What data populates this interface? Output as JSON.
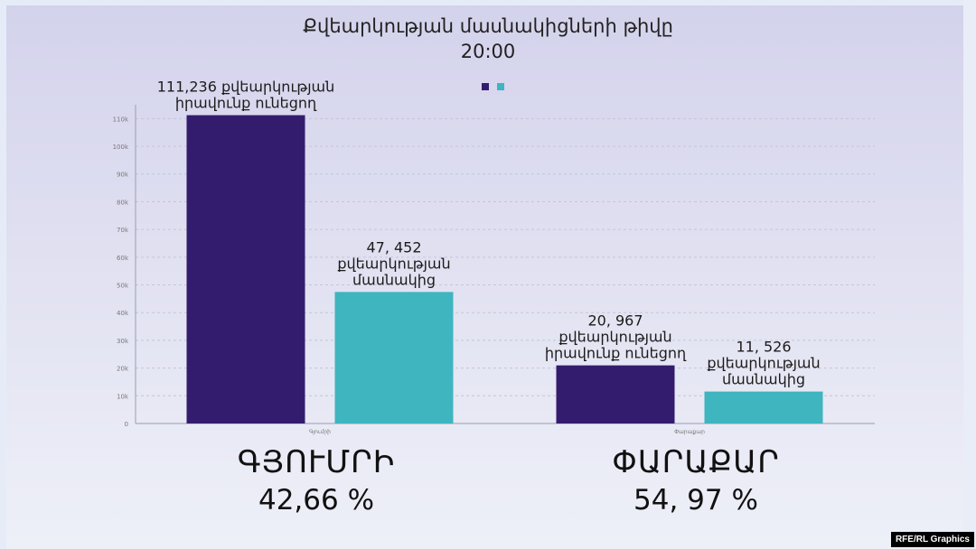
{
  "chart_data": {
    "type": "bar",
    "title": "Քվեարկության մասնակիցների թիվը",
    "subtitle": "20:00",
    "categories": [
      "Գյումրի",
      "Փարաքար"
    ],
    "series": [
      {
        "values": [
          111236,
          20967
        ],
        "color": "#331c6e"
      },
      {
        "values": [
          47452,
          11526
        ],
        "color": "#3eb5bf"
      }
    ],
    "data_labels": [
      [
        "111,236 քվեարկության\nիրավունք ունեցող",
        "20, 967\nքվեարկության\nիրավունք ունեցող"
      ],
      [
        "47, 452\nքվեարկության\nմասնակից",
        "11, 526\nքվեարկության\nմասնակից"
      ]
    ],
    "y_ticks": [
      "0",
      "10k",
      "20k",
      "30k",
      "40k",
      "50k",
      "60k",
      "70k",
      "80k",
      "90k",
      "100k",
      "110k"
    ],
    "ylim": [
      0,
      115000
    ],
    "grid": true,
    "grid_style": "dashed",
    "legend_placement": "top-center"
  },
  "panels": [
    {
      "name": "ԳՅՈՒՄՐԻ",
      "percent": "42,66 %"
    },
    {
      "name": "ՓԱՐԱՔԱՐ",
      "percent": "54, 97 %"
    }
  ],
  "credit": "RFE/RL Graphics"
}
